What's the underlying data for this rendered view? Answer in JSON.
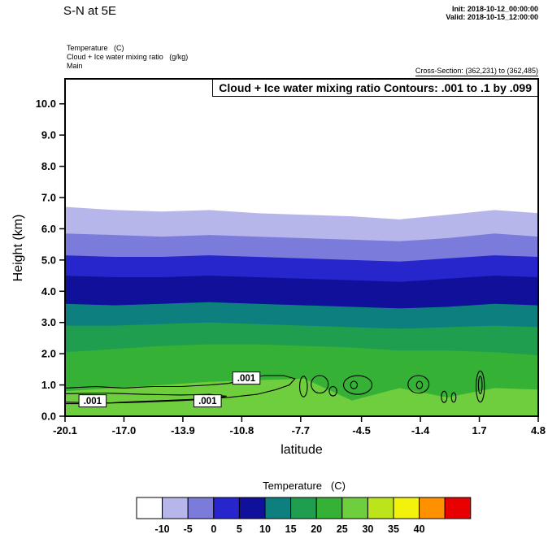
{
  "header": {
    "title": "S-N at 5E",
    "init_line": "Init: 2018-10-12_00:00:00",
    "valid_line": "Valid: 2018-10-15_12:00:00",
    "field_lines": [
      "Temperature   (C)",
      "Cloud + Ice water mixing ratio   (g/kg)",
      "Main"
    ],
    "cross_section": "Cross-Section: (362,231) to (362,485)"
  },
  "chart_data": {
    "type": "filled-contour-cross-section",
    "title": "Cloud + Ice water mixing ratio Contours: .001 to .1 by .099",
    "xlabel": "latitude",
    "ylabel": "Height (km)",
    "xlim": [
      -20.1,
      4.8
    ],
    "ylim": [
      0,
      10.8
    ],
    "x_ticks": [
      -20.1,
      -17.0,
      -13.9,
      -10.8,
      -7.7,
      -4.5,
      -1.4,
      1.7,
      4.8
    ],
    "x_tick_labels": [
      "-20.1",
      "-17.0",
      "-13.9",
      "-10.8",
      "-7.7",
      "-4.5",
      "-1.4",
      "1.7",
      "4.8"
    ],
    "y_ticks": [
      0,
      1,
      2,
      3,
      4,
      5,
      6,
      7,
      8,
      9,
      10
    ],
    "y_tick_labels": [
      "0.0",
      "1.0",
      "2.0",
      "3.0",
      "4.0",
      "5.0",
      "6.0",
      "7.0",
      "8.0",
      "9.0",
      "10.0"
    ],
    "temperature_fill": {
      "background_above_c": -10,
      "background_color": "#ffffff",
      "x": [
        -20.1,
        -17.5,
        -15.0,
        -12.5,
        -10.0,
        -7.5,
        -5.0,
        -2.5,
        0.0,
        2.5,
        4.8
      ],
      "isotherms": [
        {
          "level_c": -10,
          "fill_below": "#b6b6ea",
          "heights_km": [
            6.7,
            6.6,
            6.55,
            6.6,
            6.5,
            6.45,
            6.4,
            6.3,
            6.45,
            6.6,
            6.5
          ]
        },
        {
          "level_c": -5,
          "fill_below": "#7b7bdb",
          "heights_km": [
            5.85,
            5.8,
            5.75,
            5.8,
            5.75,
            5.7,
            5.65,
            5.6,
            5.7,
            5.85,
            5.75
          ]
        },
        {
          "level_c": 0,
          "fill_below": "#2626cc",
          "heights_km": [
            5.15,
            5.1,
            5.1,
            5.15,
            5.1,
            5.05,
            5.0,
            4.95,
            5.05,
            5.15,
            5.1
          ]
        },
        {
          "level_c": 5,
          "fill_below": "#10109b",
          "heights_km": [
            4.5,
            4.45,
            4.45,
            4.5,
            4.45,
            4.4,
            4.35,
            4.3,
            4.4,
            4.5,
            4.45
          ]
        },
        {
          "level_c": 10,
          "fill_below": "#0e7f7f",
          "heights_km": [
            3.6,
            3.55,
            3.6,
            3.65,
            3.6,
            3.55,
            3.5,
            3.45,
            3.5,
            3.6,
            3.55
          ]
        },
        {
          "level_c": 15,
          "fill_below": "#1f9e50",
          "heights_km": [
            2.9,
            2.9,
            2.95,
            3.0,
            2.95,
            2.9,
            2.85,
            2.8,
            2.85,
            2.9,
            2.85
          ]
        },
        {
          "level_c": 20,
          "fill_below": "#35b135",
          "heights_km": [
            2.05,
            2.15,
            2.25,
            2.3,
            2.3,
            2.25,
            2.2,
            2.1,
            2.1,
            2.05,
            1.95
          ]
        },
        {
          "level_c": 25,
          "fill_below": "#6fce3d",
          "heights_km": [
            0.8,
            0.9,
            1.0,
            1.1,
            1.15,
            1.2,
            0.5,
            0.9,
            0.6,
            0.9,
            0.85
          ]
        }
      ]
    },
    "cloud_contours": {
      "levels": [
        0.001,
        0.1
      ],
      "label_text": ".001",
      "loops": [
        {
          "type": "poly",
          "points": [
            [
              -20.1,
              0.9
            ],
            [
              -18.5,
              0.95
            ],
            [
              -17.0,
              0.9
            ],
            [
              -15.5,
              0.95
            ],
            [
              -14.0,
              0.95
            ],
            [
              -12.5,
              1.0
            ],
            [
              -11.5,
              1.05
            ],
            [
              -10.8,
              1.15
            ],
            [
              -10.2,
              1.25
            ],
            [
              -9.6,
              1.3
            ],
            [
              -8.6,
              1.3
            ],
            [
              -8.0,
              1.2
            ],
            [
              -8.3,
              1.0
            ],
            [
              -9.0,
              0.85
            ],
            [
              -10.0,
              0.7
            ],
            [
              -11.5,
              0.6
            ],
            [
              -13.0,
              0.55
            ],
            [
              -15.0,
              0.5
            ],
            [
              -17.0,
              0.45
            ],
            [
              -18.5,
              0.4
            ],
            [
              -20.1,
              0.4
            ]
          ]
        },
        {
          "type": "poly",
          "points": [
            [
              -20.1,
              0.72
            ],
            [
              -18.0,
              0.74
            ],
            [
              -16.0,
              0.7
            ],
            [
              -14.0,
              0.68
            ],
            [
              -12.5,
              0.7
            ],
            [
              -11.6,
              0.64
            ],
            [
              -12.5,
              0.55
            ],
            [
              -14.0,
              0.5
            ],
            [
              -16.0,
              0.45
            ],
            [
              -18.0,
              0.42
            ],
            [
              -20.1,
              0.45
            ]
          ]
        },
        {
          "type": "ellipse",
          "c": [
            -7.55,
            0.95
          ],
          "r": [
            0.2,
            0.33
          ]
        },
        {
          "type": "ellipse",
          "c": [
            -6.7,
            1.02
          ],
          "r": [
            0.45,
            0.28
          ]
        },
        {
          "type": "ellipse",
          "c": [
            -6.0,
            0.8
          ],
          "r": [
            0.2,
            0.15
          ]
        },
        {
          "type": "ellipse",
          "c": [
            -4.7,
            1.0
          ],
          "r": [
            0.75,
            0.3
          ]
        },
        {
          "type": "ellipse",
          "c": [
            -4.9,
            1.0
          ],
          "r": [
            0.18,
            0.12
          ]
        },
        {
          "type": "ellipse",
          "c": [
            -1.5,
            1.02
          ],
          "r": [
            0.55,
            0.28
          ]
        },
        {
          "type": "ellipse",
          "c": [
            -1.45,
            1.0
          ],
          "r": [
            0.16,
            0.12
          ]
        },
        {
          "type": "ellipse",
          "c": [
            1.75,
            0.95
          ],
          "r": [
            0.22,
            0.5
          ]
        },
        {
          "type": "ellipse",
          "c": [
            1.75,
            1.0
          ],
          "r": [
            0.1,
            0.28
          ]
        },
        {
          "type": "ellipse",
          "c": [
            -0.15,
            0.62
          ],
          "r": [
            0.15,
            0.18
          ]
        },
        {
          "type": "ellipse",
          "c": [
            0.35,
            0.6
          ],
          "r": [
            0.12,
            0.15
          ]
        }
      ],
      "labels": [
        {
          "text": ".001",
          "lat": -18.65,
          "km": 0.49
        },
        {
          "text": ".001",
          "lat": -12.6,
          "km": 0.49
        },
        {
          "text": ".001",
          "lat": -10.56,
          "km": 1.22
        }
      ]
    },
    "colorbar": {
      "title": "Temperature   (C)",
      "tick_labels": [
        "-10",
        "-5",
        "0",
        "5",
        "10",
        "15",
        "20",
        "25",
        "30",
        "35",
        "40"
      ],
      "colors": [
        "#ffffff",
        "#b6b6ea",
        "#7b7bdb",
        "#2626cc",
        "#10109b",
        "#0e7f7f",
        "#1f9e50",
        "#35b135",
        "#6fce3d",
        "#bce41a",
        "#f2f20c",
        "#ff9000",
        "#e80000"
      ]
    }
  }
}
